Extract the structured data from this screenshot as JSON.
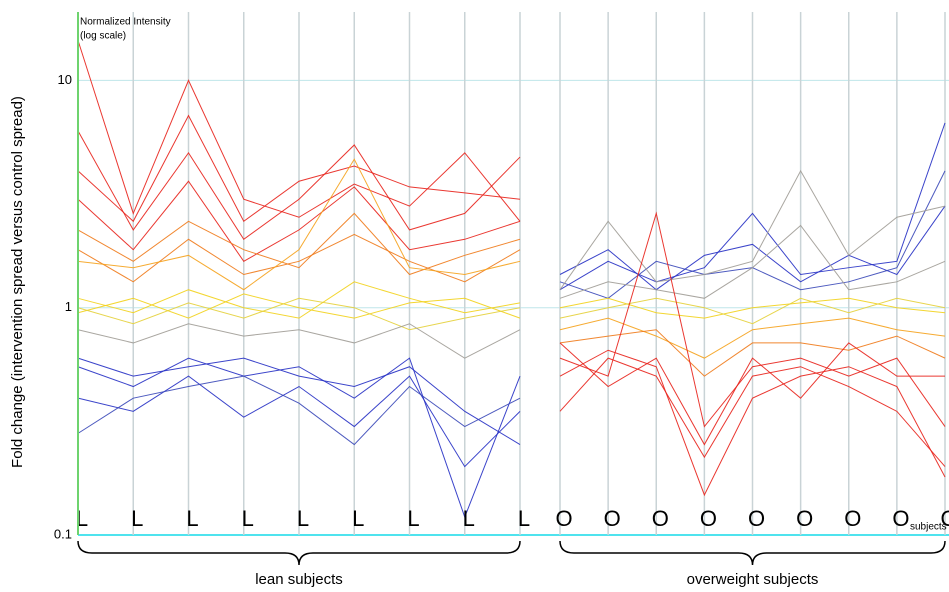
{
  "chart_data": [
    {
      "type": "line",
      "ylabel": "Fold change (intervention spread versus control spread)",
      "annotation": [
        "Normalized Intensity",
        "(log scale)"
      ],
      "xlabel": "lean subjects",
      "log_scale": true,
      "ylim": [
        0.1,
        20
      ],
      "yticks": [
        0.1,
        1,
        10
      ],
      "grid": true,
      "categories": [
        "L",
        "L",
        "L",
        "L",
        "L",
        "L",
        "L",
        "L",
        "L"
      ],
      "series": [
        {
          "color": "#e8221b",
          "values": [
            15,
            2.6,
            10,
            3,
            2.5,
            3.5,
            2.8,
            4.8,
            2.4
          ]
        },
        {
          "color": "#e8221b",
          "values": [
            6,
            2.2,
            4.8,
            2.0,
            3.0,
            5.2,
            2.2,
            2.6,
            4.6
          ]
        },
        {
          "color": "#e8221b",
          "values": [
            4,
            2.4,
            7.0,
            2.4,
            3.6,
            4.2,
            3.4,
            3.2,
            3.0
          ]
        },
        {
          "color": "#e8221b",
          "values": [
            3,
            1.8,
            3.6,
            1.6,
            2.2,
            3.4,
            1.8,
            2.0,
            2.4
          ]
        },
        {
          "color": "#f07a1a",
          "values": [
            2.2,
            1.6,
            2.4,
            1.8,
            1.5,
            2.6,
            1.4,
            1.7,
            2.0
          ]
        },
        {
          "color": "#f07a1a",
          "values": [
            1.8,
            1.3,
            2.0,
            1.4,
            1.6,
            2.1,
            1.6,
            1.3,
            1.8
          ]
        },
        {
          "color": "#f5a21c",
          "values": [
            1.6,
            1.5,
            1.7,
            1.2,
            1.8,
            4.5,
            1.5,
            1.4,
            1.6
          ]
        },
        {
          "color": "#f2d21b",
          "values": [
            1.1,
            0.95,
            1.2,
            1.0,
            0.9,
            1.3,
            1.1,
            0.95,
            1.05
          ]
        },
        {
          "color": "#f2d21b",
          "values": [
            0.95,
            1.1,
            0.9,
            1.15,
            1.0,
            0.9,
            1.05,
            1.1,
            0.9
          ]
        },
        {
          "color": "#e4d03a",
          "values": [
            1.0,
            0.85,
            1.05,
            0.9,
            1.1,
            1.0,
            0.8,
            0.9,
            1.0
          ]
        },
        {
          "color": "#a09c96",
          "values": [
            0.8,
            0.7,
            0.85,
            0.75,
            0.8,
            0.7,
            0.85,
            0.6,
            0.8
          ]
        },
        {
          "color": "#2630c4",
          "values": [
            0.55,
            0.45,
            0.6,
            0.5,
            0.55,
            0.4,
            0.6,
            0.12,
            0.5
          ]
        },
        {
          "color": "#2630c4",
          "values": [
            0.4,
            0.35,
            0.5,
            0.33,
            0.45,
            0.3,
            0.5,
            0.2,
            0.35
          ]
        },
        {
          "color": "#2630c4",
          "values": [
            0.6,
            0.5,
            0.55,
            0.6,
            0.5,
            0.45,
            0.55,
            0.35,
            0.25
          ]
        },
        {
          "color": "#3a48b8",
          "values": [
            0.28,
            0.4,
            0.45,
            0.5,
            0.38,
            0.25,
            0.45,
            0.3,
            0.4
          ]
        }
      ]
    },
    {
      "type": "line",
      "xlabel": "overweight subjects",
      "annotation": [
        "subjects"
      ],
      "categories": [
        "O",
        "O",
        "O",
        "O",
        "O",
        "O",
        "O",
        "O",
        "O"
      ],
      "series": [
        {
          "color": "#2630c4",
          "values": [
            1.2,
            1.6,
            1.3,
            1.5,
            2.6,
            1.4,
            1.5,
            1.6,
            6.5
          ]
        },
        {
          "color": "#2630c4",
          "values": [
            1.4,
            1.8,
            1.2,
            1.7,
            1.9,
            1.3,
            1.7,
            1.4,
            2.8
          ]
        },
        {
          "color": "#3a48b8",
          "values": [
            1.3,
            1.1,
            1.6,
            1.4,
            1.5,
            1.2,
            1.3,
            1.5,
            4.0
          ]
        },
        {
          "color": "#a09c96",
          "values": [
            1.2,
            2.4,
            1.3,
            1.4,
            1.6,
            4.0,
            1.7,
            2.5,
            2.8
          ]
        },
        {
          "color": "#a09c96",
          "values": [
            1.1,
            1.3,
            1.2,
            1.1,
            1.5,
            2.3,
            1.2,
            1.3,
            1.6
          ]
        },
        {
          "color": "#f2d21b",
          "values": [
            1.0,
            1.1,
            0.95,
            0.9,
            1.0,
            1.05,
            1.1,
            1.0,
            0.95
          ]
        },
        {
          "color": "#e4d03a",
          "values": [
            0.9,
            1.0,
            1.1,
            1.0,
            0.85,
            1.1,
            0.95,
            1.1,
            1.0
          ]
        },
        {
          "color": "#f5a21c",
          "values": [
            0.8,
            0.9,
            0.75,
            0.6,
            0.8,
            0.85,
            0.9,
            0.8,
            0.75
          ]
        },
        {
          "color": "#f07a1a",
          "values": [
            0.7,
            0.75,
            0.8,
            0.5,
            0.7,
            0.7,
            0.65,
            0.75,
            0.6
          ]
        },
        {
          "color": "#e8221b",
          "values": [
            0.6,
            0.5,
            2.6,
            0.3,
            0.55,
            0.6,
            0.5,
            0.6,
            0.3
          ]
        },
        {
          "color": "#e8221b",
          "values": [
            0.5,
            0.65,
            0.55,
            0.15,
            0.4,
            0.5,
            0.55,
            0.45,
            0.18
          ]
        },
        {
          "color": "#e8221b",
          "values": [
            0.7,
            0.45,
            0.6,
            0.25,
            0.6,
            0.4,
            0.7,
            0.5,
            0.5
          ]
        },
        {
          "color": "#e8221b",
          "values": [
            0.35,
            0.6,
            0.5,
            0.22,
            0.5,
            0.55,
            0.45,
            0.35,
            0.2
          ]
        }
      ]
    }
  ]
}
